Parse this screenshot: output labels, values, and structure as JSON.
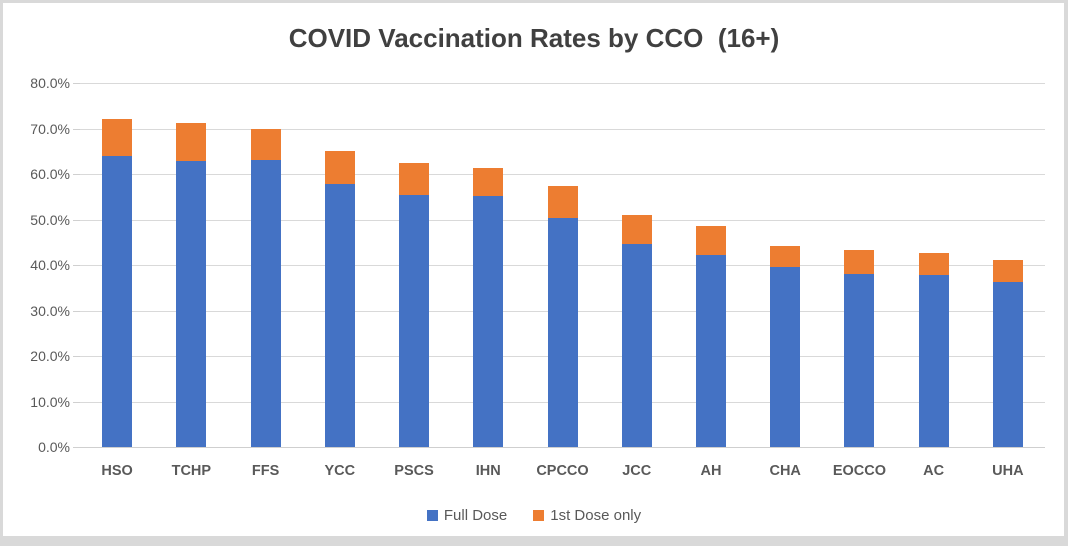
{
  "chart_data": {
    "type": "bar",
    "stacked": true,
    "title": "COVID Vaccination Rates by CCO  (16+)",
    "categories": [
      "HSO",
      "TCHP",
      "FFS",
      "YCC",
      "PSCS",
      "IHN",
      "CPCCO",
      "JCC",
      "AH",
      "CHA",
      "EOCCO",
      "AC",
      "UHA"
    ],
    "series": [
      {
        "name": "Full Dose",
        "color": "#4472C4",
        "values": [
          64.0,
          62.8,
          63.0,
          57.7,
          55.4,
          55.2,
          50.4,
          44.7,
          42.3,
          39.5,
          38.0,
          37.8,
          36.2
        ]
      },
      {
        "name": "1st Dose only",
        "color": "#ED7D31",
        "values": [
          8.0,
          8.5,
          6.8,
          7.4,
          7.1,
          6.2,
          6.9,
          6.2,
          6.2,
          4.6,
          5.4,
          4.9,
          4.9
        ]
      }
    ],
    "stack_totals": [
      72.0,
      71.3,
      69.8,
      65.1,
      62.5,
      61.4,
      57.3,
      50.9,
      48.5,
      44.1,
      43.4,
      42.7,
      41.1
    ],
    "xlabel": "",
    "ylabel": "",
    "ylim": [
      0,
      80
    ],
    "ytick_step": 10,
    "ytick_labels": [
      "0.0%",
      "10.0%",
      "20.0%",
      "30.0%",
      "40.0%",
      "50.0%",
      "60.0%",
      "70.0%",
      "80.0%"
    ],
    "grid": true,
    "legend_position": "bottom-center"
  },
  "colors": {
    "page_background": "#D9D9D9",
    "panel_background": "#FFFFFF",
    "gridline": "#D9D9D9",
    "axis_line": "#CFCFCF",
    "title_text": "#404040",
    "axis_text": "#595959"
  }
}
